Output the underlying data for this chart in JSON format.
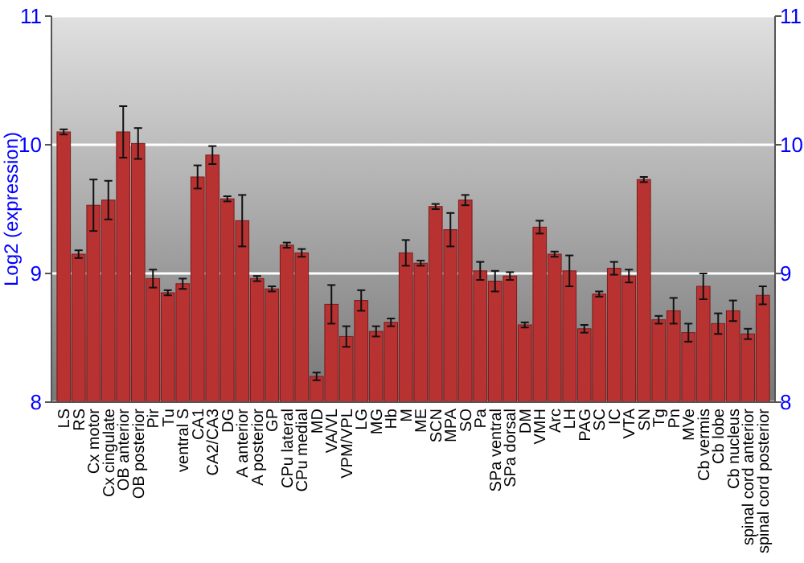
{
  "chart_data": {
    "type": "bar",
    "ylabel": "Log2 (expression)",
    "categories": [
      "LS",
      "RS",
      "Cx motor",
      "Cx cingulate",
      "OB anterior",
      "OB posterior",
      "Pir",
      "Tu",
      "ventral S",
      "CA1",
      "CA2/CA3",
      "DG",
      "A anterior",
      "A posterior",
      "GP",
      "CPu lateral",
      "CPu medial",
      "MD",
      "VA/VL",
      "VPM/VPL",
      "LG",
      "MG",
      "Hb",
      "M",
      "ME",
      "SCN",
      "MPA",
      "SO",
      "Pa",
      "SPa ventral",
      "SPa dorsal",
      "DM",
      "VMH",
      "Arc",
      "LH",
      "PAG",
      "SC",
      "IC",
      "VTA",
      "SN",
      "Tg",
      "Pn",
      "MVe",
      "Cb vermis",
      "Cb lobe",
      "Cb nucleus",
      "spinal cord anterior",
      "spinal cord posterior"
    ],
    "values": [
      10.1,
      9.15,
      9.53,
      9.57,
      10.1,
      10.01,
      8.96,
      8.85,
      8.92,
      9.75,
      9.92,
      9.58,
      9.41,
      8.96,
      8.88,
      9.22,
      9.16,
      8.2,
      8.76,
      8.51,
      8.79,
      8.55,
      8.62,
      9.16,
      9.08,
      9.52,
      9.34,
      9.57,
      9.02,
      8.94,
      8.98,
      8.6,
      9.36,
      9.15,
      9.02,
      8.57,
      8.84,
      9.04,
      8.98,
      9.73,
      8.64,
      8.71,
      8.54,
      8.9,
      8.61,
      8.71,
      8.53,
      8.83
    ],
    "errors": [
      0.02,
      0.03,
      0.2,
      0.15,
      0.2,
      0.12,
      0.07,
      0.02,
      0.04,
      0.09,
      0.07,
      0.02,
      0.2,
      0.02,
      0.02,
      0.02,
      0.03,
      0.03,
      0.15,
      0.08,
      0.08,
      0.04,
      0.03,
      0.1,
      0.02,
      0.02,
      0.13,
      0.04,
      0.07,
      0.08,
      0.03,
      0.02,
      0.05,
      0.02,
      0.12,
      0.03,
      0.02,
      0.05,
      0.05,
      0.02,
      0.03,
      0.1,
      0.07,
      0.1,
      0.08,
      0.08,
      0.04,
      0.07
    ],
    "color": "#b83232",
    "ylim": [
      8,
      11
    ],
    "yticks": [
      8,
      9,
      10,
      11
    ],
    "y2lim": [
      8,
      11
    ],
    "y2ticks": [
      8,
      9,
      10,
      11
    ],
    "grid": "y"
  }
}
